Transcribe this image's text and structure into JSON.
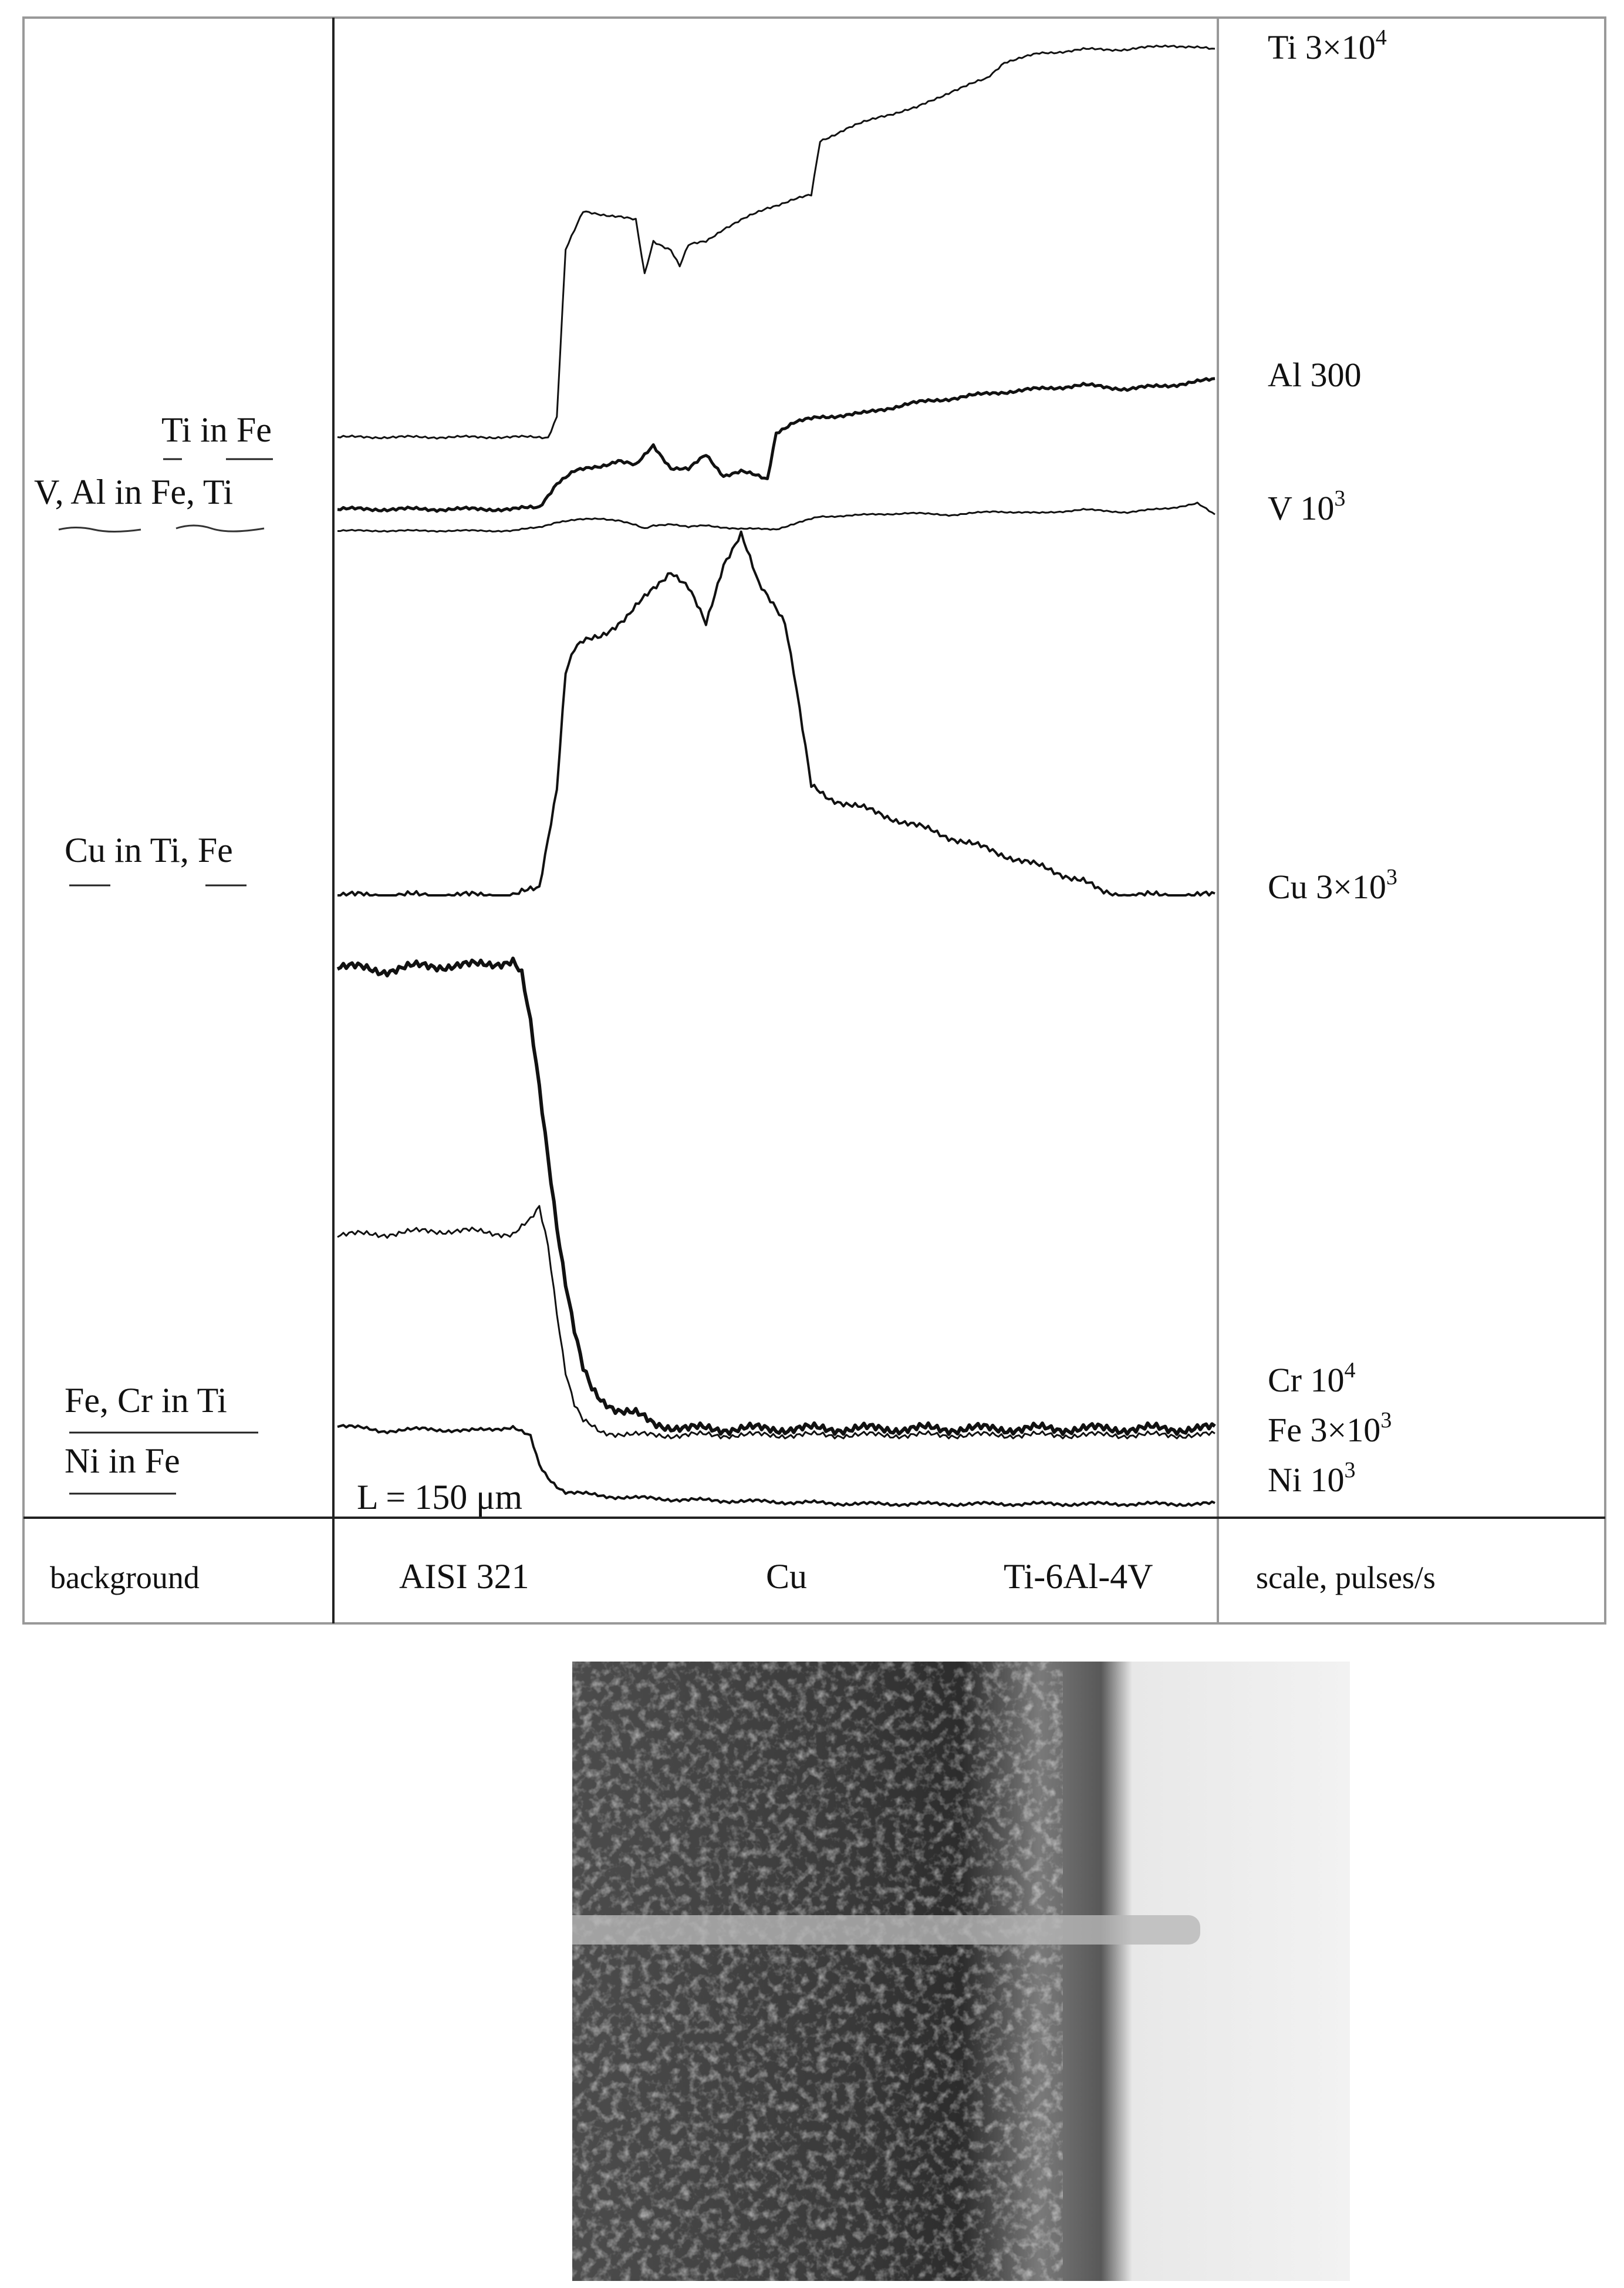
{
  "chart_data": {
    "type": "line",
    "title": "",
    "xlabel": "",
    "ylabel": "",
    "scale_bar": "L = 150 μm",
    "x_domain": [
      0,
      100
    ],
    "regions": [
      "AISI 321",
      "Cu",
      "Ti-6Al-4V"
    ],
    "footer": {
      "background_header": "background",
      "scale_header": "scale, pulses/s"
    },
    "background_labels": [
      {
        "id": "ti_in_fe",
        "text": "Ti in Fe"
      },
      {
        "id": "v_al_in_fe_ti",
        "text": "V, Al in Fe, Ti"
      },
      {
        "id": "cu_in_ti_fe",
        "text": "Cu in Ti, Fe"
      },
      {
        "id": "fe_cr_in_ti",
        "text": "Fe, Cr in Ti"
      },
      {
        "id": "ni_in_fe",
        "text": "Ni in Fe"
      }
    ],
    "series": [
      {
        "name": "Ti",
        "scale_base": "Ti 3×10",
        "scale_exp": "4",
        "x": [
          0,
          24,
          25,
          26,
          28,
          32,
          34,
          35,
          36,
          38,
          39,
          40,
          42,
          44,
          46,
          49,
          52,
          54,
          55,
          58,
          62,
          66,
          70,
          74,
          76,
          80,
          85,
          90,
          95,
          100
        ],
        "y": [
          0.05,
          0.05,
          0.1,
          0.5,
          0.59,
          0.58,
          0.57,
          0.44,
          0.52,
          0.5,
          0.46,
          0.51,
          0.52,
          0.55,
          0.57,
          0.6,
          0.62,
          0.63,
          0.76,
          0.79,
          0.82,
          0.84,
          0.88,
          0.91,
          0.95,
          0.97,
          0.98,
          0.98,
          0.99,
          0.98
        ]
      },
      {
        "name": "Al",
        "scale_base": "Al 300",
        "scale_exp": "",
        "x": [
          0,
          20,
          23,
          25,
          27,
          30,
          32,
          34,
          36,
          38,
          40,
          42,
          44,
          46,
          49,
          50,
          52,
          55,
          60,
          65,
          70,
          75,
          80,
          85,
          90,
          95,
          100
        ],
        "y": [
          0.04,
          0.04,
          0.05,
          0.18,
          0.24,
          0.27,
          0.3,
          0.27,
          0.38,
          0.26,
          0.25,
          0.33,
          0.22,
          0.24,
          0.2,
          0.45,
          0.5,
          0.53,
          0.55,
          0.6,
          0.63,
          0.66,
          0.68,
          0.7,
          0.68,
          0.7,
          0.73
        ]
      },
      {
        "name": "V",
        "scale_base": "V 10",
        "scale_exp": "3",
        "x": [
          0,
          20,
          23,
          25,
          27,
          30,
          32,
          34,
          35,
          36,
          38,
          40,
          42,
          44,
          46,
          50,
          55,
          60,
          65,
          70,
          75,
          80,
          85,
          90,
          95,
          98,
          100
        ],
        "y": [
          0.04,
          0.04,
          0.08,
          0.14,
          0.16,
          0.18,
          0.16,
          0.1,
          0.06,
          0.1,
          0.12,
          0.08,
          0.1,
          0.08,
          0.06,
          0.06,
          0.2,
          0.22,
          0.24,
          0.22,
          0.26,
          0.24,
          0.28,
          0.25,
          0.3,
          0.35,
          0.22
        ]
      },
      {
        "name": "Cu",
        "scale_base": "Cu 3×10",
        "scale_exp": "3",
        "x": [
          0,
          20,
          23,
          25,
          26,
          27,
          28,
          30,
          33,
          36,
          38,
          40,
          42,
          44,
          46,
          48,
          50,
          51,
          52,
          54,
          56,
          60,
          65,
          70,
          75,
          80,
          85,
          87,
          90,
          95,
          100
        ],
        "y": [
          0.0,
          0.0,
          0.02,
          0.3,
          0.62,
          0.68,
          0.7,
          0.72,
          0.77,
          0.85,
          0.9,
          0.85,
          0.75,
          0.92,
          1.0,
          0.86,
          0.8,
          0.76,
          0.62,
          0.3,
          0.27,
          0.24,
          0.2,
          0.16,
          0.12,
          0.08,
          0.04,
          0.01,
          0.0,
          0.0,
          0.0
        ]
      },
      {
        "name": "Cr",
        "scale_base": "Cr 10",
        "scale_exp": "4",
        "x": [
          0,
          5,
          10,
          15,
          20,
          21,
          22,
          23,
          24,
          25,
          26,
          27,
          28,
          29,
          30,
          32,
          34,
          36,
          40,
          50,
          60,
          70,
          80,
          90,
          100
        ],
        "y": [
          0.97,
          0.96,
          0.97,
          0.97,
          0.98,
          0.95,
          0.85,
          0.72,
          0.58,
          0.44,
          0.32,
          0.22,
          0.14,
          0.1,
          0.08,
          0.06,
          0.05,
          0.03,
          0.02,
          0.02,
          0.02,
          0.02,
          0.02,
          0.02,
          0.02
        ]
      },
      {
        "name": "Fe",
        "scale_base": "Fe 3×10",
        "scale_exp": "3",
        "x": [
          0,
          5,
          10,
          15,
          20,
          22,
          23,
          24,
          25,
          26,
          27,
          28,
          30,
          34,
          40,
          50,
          60,
          70,
          80,
          90,
          100
        ],
        "y": [
          0.61,
          0.61,
          0.62,
          0.62,
          0.61,
          0.65,
          0.69,
          0.58,
          0.38,
          0.2,
          0.1,
          0.05,
          0.02,
          0.01,
          0.01,
          0.01,
          0.01,
          0.01,
          0.01,
          0.01,
          0.01
        ]
      },
      {
        "name": "Ni",
        "scale_base": "Ni 10",
        "scale_exp": "3",
        "x": [
          0,
          5,
          10,
          15,
          20,
          22,
          23,
          24,
          25,
          26,
          28,
          30,
          34,
          40,
          50,
          60,
          70,
          80,
          90,
          100
        ],
        "y": [
          0.4,
          0.37,
          0.38,
          0.37,
          0.39,
          0.34,
          0.2,
          0.14,
          0.1,
          0.07,
          0.06,
          0.05,
          0.04,
          0.03,
          0.02,
          0.01,
          0.01,
          0.01,
          0.01,
          0.01
        ]
      }
    ]
  },
  "micrograph": {
    "left_zone_color": "#4a4a4a",
    "middle_zone_color": "#3a3a3a",
    "right_zone_color": "#f0f0f0"
  }
}
